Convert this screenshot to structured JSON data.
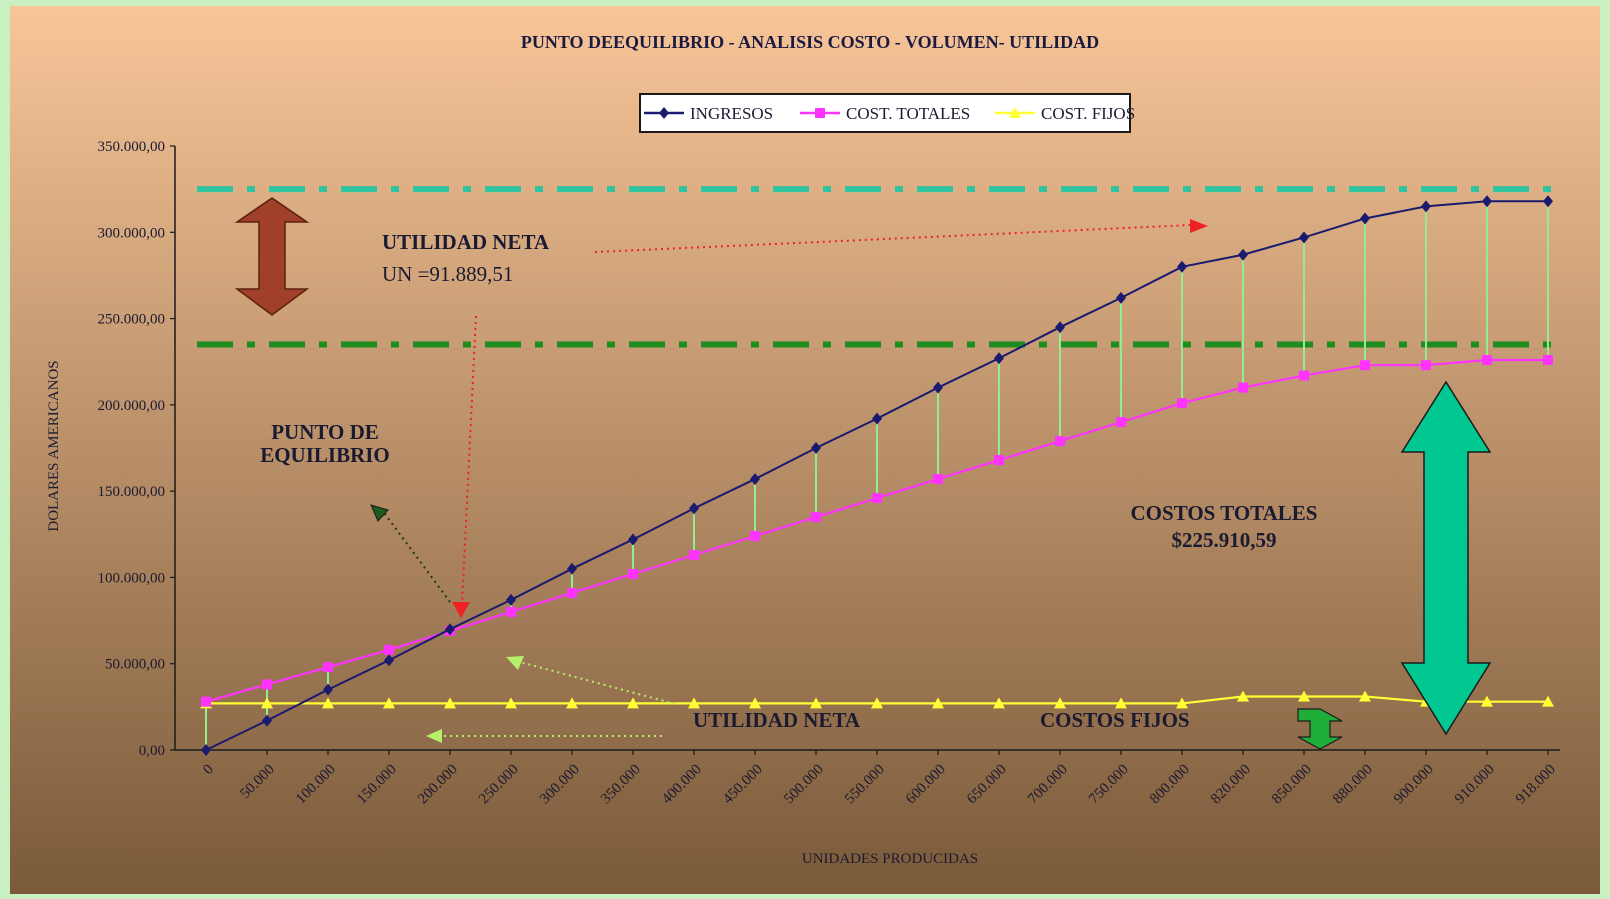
{
  "colors": {
    "ingresos": "#1a1a6e",
    "costos_totales": "#ff33ff",
    "costos_fijos": "#ffff33",
    "drop_lines": "#90ee90",
    "ref_line_top": "#2ec4a0",
    "ref_line_bottom": "#1e8c1e",
    "arrow_brown": "#a0402a",
    "arrow_teal": "#00c890",
    "arrow_green": "#1fae3a",
    "red_dotted": "#ee2222",
    "bg_top": "#f8c598",
    "bg_bottom": "#7a5a3a"
  },
  "chart_data": {
    "type": "line",
    "title": "PUNTO DEEQUILIBRIO - ANALISIS COSTO - VOLUMEN- UTILIDAD",
    "xlabel": "UNIDADES PRODUCIDAS",
    "ylabel": "DOLARES AMERICANOS",
    "ylim": [
      0,
      350000
    ],
    "y_ticks": [
      "0,00",
      "50.000,00",
      "100.000,00",
      "150.000,00",
      "200.000,00",
      "250.000,00",
      "300.000,00",
      "350.000,00"
    ],
    "categories": [
      "0",
      "50.000",
      "100.000",
      "150.000",
      "200.000",
      "250.000",
      "300.000",
      "350.000",
      "400.000",
      "450.000",
      "500.000",
      "550.000",
      "600.000",
      "650.000",
      "700.000",
      "750.000",
      "800.000",
      "820.000",
      "850.000",
      "880.000",
      "900.000",
      "910.000",
      "918.000"
    ],
    "grid": false,
    "legend_position": "top-center",
    "series": [
      {
        "name": "INGRESOS",
        "values": [
          0,
          17000,
          35000,
          52000,
          70000,
          87000,
          105000,
          122000,
          140000,
          157000,
          175000,
          192000,
          210000,
          227000,
          245000,
          262000,
          280000,
          287000,
          297000,
          308000,
          315000,
          318000,
          318000
        ]
      },
      {
        "name": "COST. TOTALES",
        "values": [
          28000,
          38000,
          48000,
          58000,
          69000,
          80000,
          91000,
          102000,
          113000,
          124000,
          135000,
          146000,
          157000,
          168000,
          179000,
          190000,
          201000,
          210000,
          217000,
          223000,
          223000,
          226000,
          226000
        ]
      },
      {
        "name": "COST. FIJOS",
        "values": [
          27000,
          27000,
          27000,
          27000,
          27000,
          27000,
          27000,
          27000,
          27000,
          27000,
          27000,
          27000,
          27000,
          27000,
          27000,
          27000,
          27000,
          31000,
          31000,
          31000,
          28000,
          28000,
          28000
        ]
      }
    ],
    "reference_lines": [
      325000,
      235000
    ],
    "annotations": {
      "utilidad_neta_top": "UTILIDAD NETA",
      "un_value": "UN =91.889,51",
      "punto_line1": "PUNTO DE",
      "punto_line2": "EQUILIBRIO",
      "costos_totales_label": "COSTOS TOTALES",
      "costos_totales_value": "$225.910,59",
      "utilidad_neta_bottom": "UTILIDAD NETA",
      "costos_fijos_label": "COSTOS FIJOS"
    }
  }
}
